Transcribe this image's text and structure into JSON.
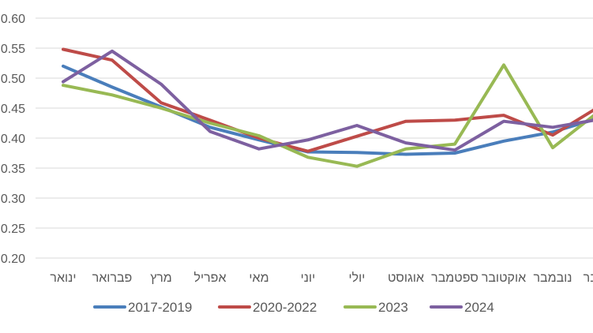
{
  "chart_data": {
    "type": "line",
    "title": "",
    "xlabel": "",
    "ylabel": "",
    "ylim": [
      0.2,
      0.6
    ],
    "yticks": [
      "0.60",
      "0.55",
      "0.50",
      "0.45",
      "0.40",
      "0.35",
      "0.30",
      "0.25",
      "0.20"
    ],
    "ytick_values": [
      0.6,
      0.55,
      0.5,
      0.45,
      0.4,
      0.35,
      0.3,
      0.25,
      0.2
    ],
    "grid": "horizontal",
    "legend_position": "bottom",
    "categories": [
      "ינואר",
      "פברואר",
      "מרץ",
      "אפריל",
      "מאי",
      "יוני",
      "יולי",
      "אוגוסט",
      "ספטמבר",
      "אוקטובר",
      "נובמבר",
      "דצמבר"
    ],
    "series": [
      {
        "name": "2017-2019",
        "color": "#4a7ebb",
        "values": [
          0.52,
          0.485,
          0.452,
          0.418,
          0.397,
          0.377,
          0.376,
          0.373,
          0.375,
          0.395,
          0.41,
          0.435
        ]
      },
      {
        "name": "2020-2022",
        "color": "#be4b48",
        "values": [
          0.548,
          0.53,
          0.459,
          0.43,
          0.4,
          0.378,
          0.403,
          0.428,
          0.43,
          0.438,
          0.405,
          0.455
        ]
      },
      {
        "name": "2023",
        "color": "#98b954",
        "values": [
          0.488,
          0.472,
          0.45,
          0.425,
          0.404,
          0.368,
          0.353,
          0.382,
          0.39,
          0.522,
          0.384,
          0.448
        ]
      },
      {
        "name": "2024",
        "color": "#7d60a0",
        "values": [
          0.494,
          0.545,
          0.49,
          0.411,
          0.382,
          0.397,
          0.421,
          0.392,
          0.38,
          0.428,
          0.418,
          0.432
        ]
      }
    ]
  }
}
